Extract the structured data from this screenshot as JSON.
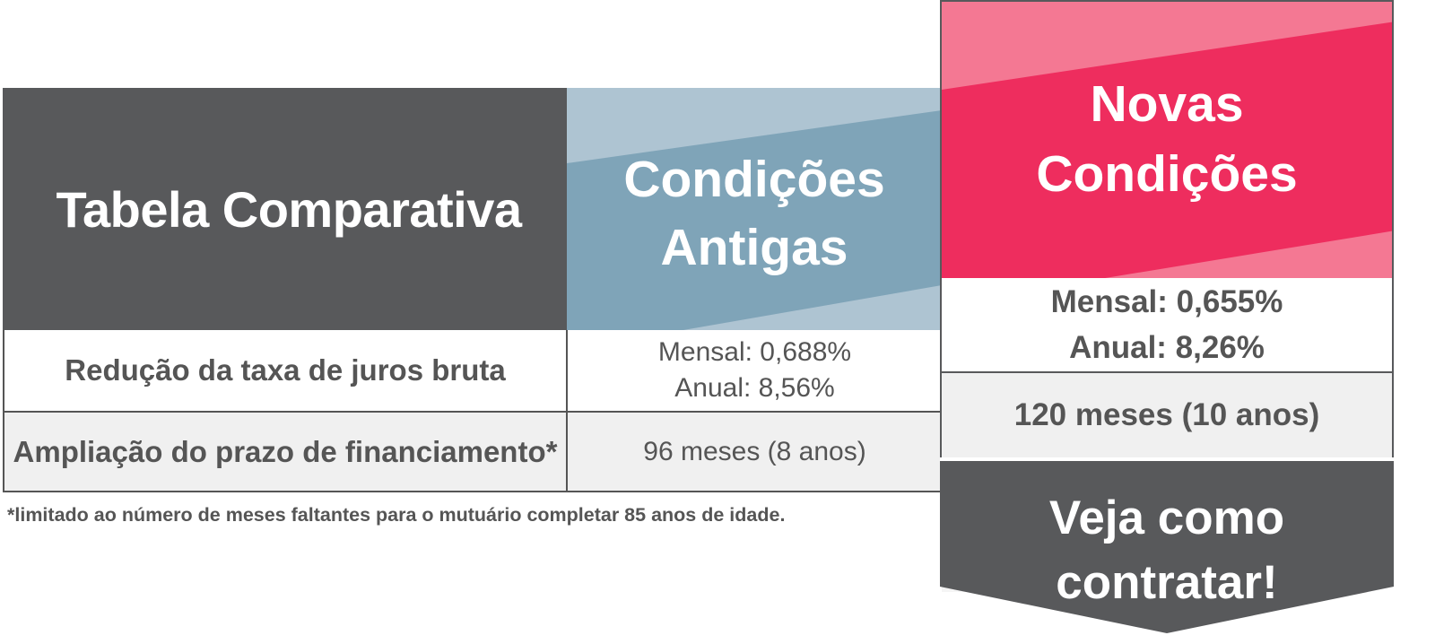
{
  "colors": {
    "dark_gray": "#58595b",
    "old_blue": "#7fa4b8",
    "old_blue_light": "#aec4d2",
    "new_pink": "#ee2d5e",
    "new_pink_light": "#f47893",
    "row_gray": "#f0f0f0",
    "text_gray": "#555555"
  },
  "table": {
    "title": "Tabela Comparativa",
    "old_header": "Condições\nAntigas",
    "new_header": "Novas\nCondições",
    "rows": [
      {
        "label": "Redução da taxa de juros bruta",
        "old_lines": [
          "Mensal: 0,688%",
          "Anual: 8,56%"
        ],
        "new_lines": [
          "Mensal: 0,655%",
          "Anual: 8,26%"
        ]
      },
      {
        "label": "Ampliação do prazo de financiamento*",
        "old_lines": [
          "96 meses (8 anos)"
        ],
        "new_lines": [
          "120 meses (10 anos)"
        ]
      }
    ]
  },
  "footnote": "*limitado ao número de meses faltantes para o mutuário completar 85 anos de idade.",
  "cta": {
    "label": "Veja como\ncontratar!"
  }
}
